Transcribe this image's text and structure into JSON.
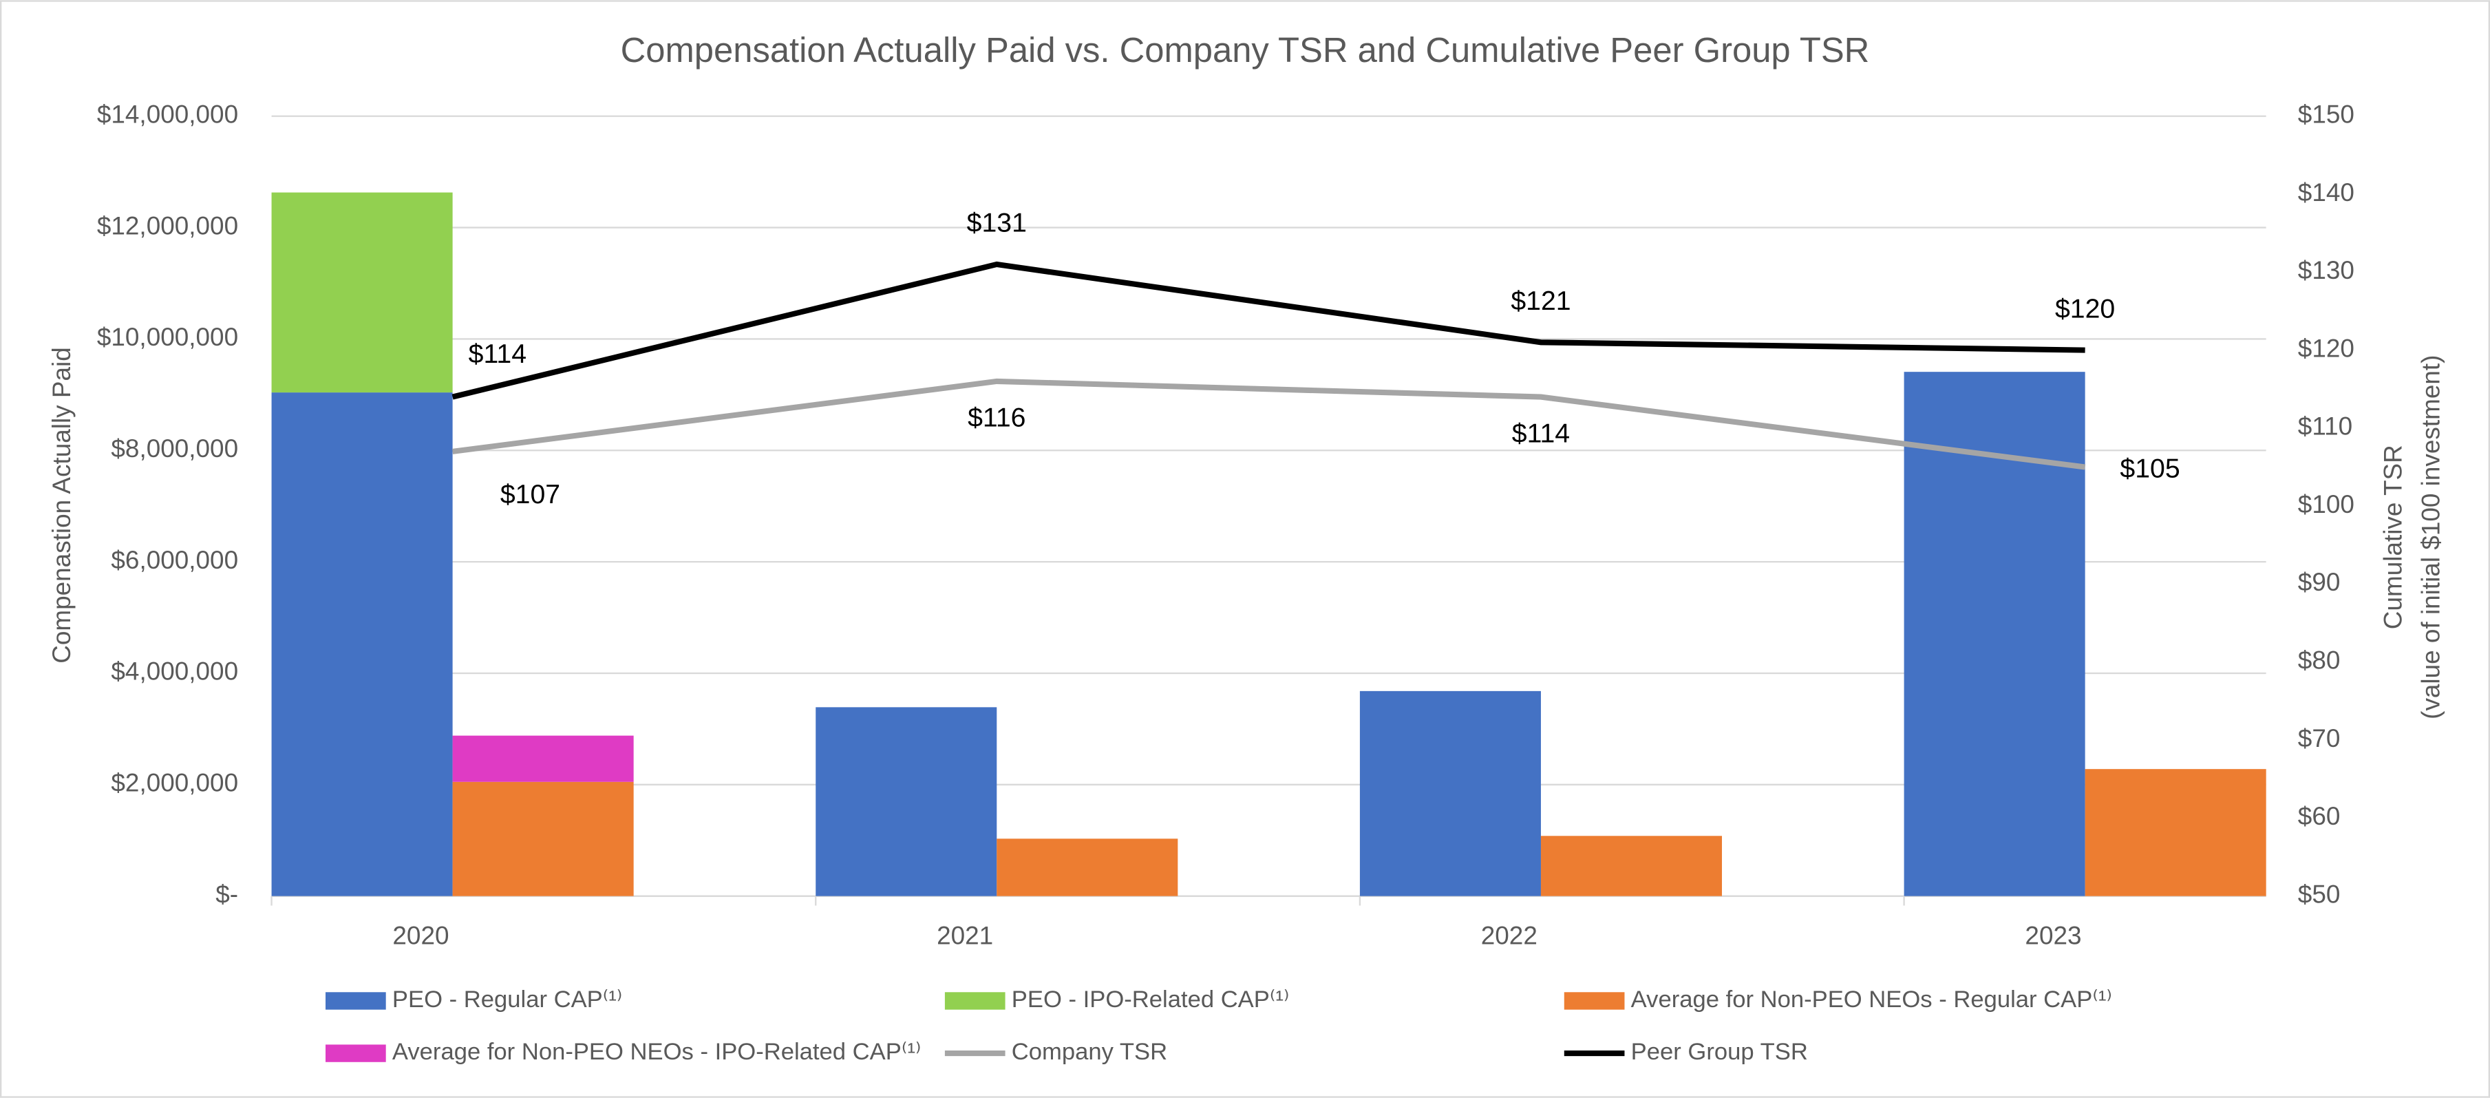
{
  "chart_data": {
    "type": "bar",
    "title": "Compensation Actually Paid vs. Company TSR and Cumulative Peer Group TSR",
    "y_label": "Compenastion Actually Paid",
    "y2_label": [
      "Cumulative TSR",
      "(value of initial $100 investment)"
    ],
    "categories": [
      "2020",
      "2021",
      "2022",
      "2023"
    ],
    "ylim": [
      0,
      14000000
    ],
    "yticks": [
      {
        "value": 0,
        "label": "$-"
      },
      {
        "value": 2000000,
        "label": "$2,000,000"
      },
      {
        "value": 4000000,
        "label": "$4,000,000"
      },
      {
        "value": 6000000,
        "label": "$6,000,000"
      },
      {
        "value": 8000000,
        "label": "$8,000,000"
      },
      {
        "value": 10000000,
        "label": "$10,000,000"
      },
      {
        "value": 12000000,
        "label": "$12,000,000"
      },
      {
        "value": 14000000,
        "label": "$14,000,000"
      }
    ],
    "y2lim": [
      50,
      150
    ],
    "y2ticks": [
      {
        "value": 50,
        "label": "$50"
      },
      {
        "value": 60,
        "label": "$60"
      },
      {
        "value": 70,
        "label": "$70"
      },
      {
        "value": 80,
        "label": "$80"
      },
      {
        "value": 90,
        "label": "$90"
      },
      {
        "value": 100,
        "label": "$100"
      },
      {
        "value": 110,
        "label": "$110"
      },
      {
        "value": 120,
        "label": "$120"
      },
      {
        "value": 130,
        "label": "$130"
      },
      {
        "value": 140,
        "label": "$140"
      },
      {
        "value": 150,
        "label": "$150"
      }
    ],
    "grid": true,
    "legend": "bottom",
    "series": [
      {
        "name": "PEO - Regular CAP⁽¹⁾",
        "type": "bar",
        "color": "#4472c4",
        "values": [
          9040000,
          3390000,
          3680000,
          9410000
        ]
      },
      {
        "name": "PEO - IPO-Related CAP⁽¹⁾",
        "type": "bar",
        "color": "#92d050",
        "values": [
          3590000,
          null,
          null,
          null
        ]
      },
      {
        "name": "Average for Non-PEO NEOs - Regular CAP⁽¹⁾",
        "type": "bar",
        "color": "#ed7d31",
        "values": [
          2050000,
          1030000,
          1080000,
          2280000
        ]
      },
      {
        "name": "Average for Non-PEO NEOs - IPO-Related CAP⁽¹⁾",
        "type": "bar",
        "color": "#df3bc4",
        "values": [
          830000,
          null,
          null,
          null
        ]
      },
      {
        "name": "Company TSR",
        "type": "line",
        "axis": "y2",
        "color": "#a5a5a5",
        "values": [
          107,
          116,
          114,
          105
        ],
        "value_labels": [
          "$107",
          "$116",
          "$114",
          "$105"
        ]
      },
      {
        "name": "Peer Group TSR",
        "type": "line",
        "axis": "y2",
        "color": "#000000",
        "values": [
          114,
          131,
          121,
          120
        ],
        "value_labels": [
          "$114",
          "$131",
          "$121",
          "$120"
        ]
      }
    ]
  }
}
